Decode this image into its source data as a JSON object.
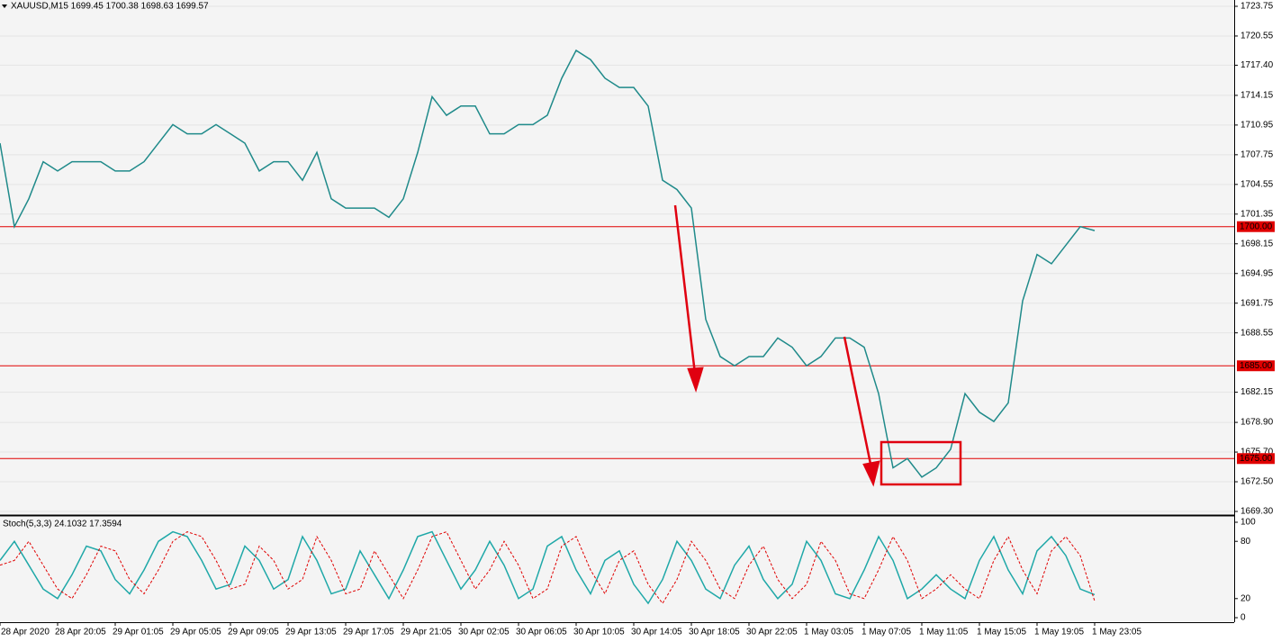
{
  "chart_data": [
    {
      "type": "line",
      "title": "XAUUSD,M15 1699.45 1700.38 1698.63 1699.57",
      "color": "#1f8a8a",
      "categories": [
        "28 Apr 2020",
        null,
        null,
        null,
        "28 Apr 20:05",
        null,
        null,
        null,
        "29 Apr 01:05",
        null,
        null,
        null,
        "29 Apr 05:05",
        null,
        null,
        null,
        "29 Apr 09:05",
        null,
        null,
        null,
        "29 Apr 13:05",
        null,
        null,
        null,
        "29 Apr 17:05",
        null,
        null,
        null,
        "29 Apr 21:05",
        null,
        null,
        null,
        "30 Apr 02:05",
        null,
        null,
        null,
        "30 Apr 06:05",
        null,
        null,
        null,
        "30 Apr 10:05",
        null,
        null,
        null,
        "30 Apr 14:05",
        null,
        null,
        null,
        "30 Apr 18:05",
        null,
        null,
        null,
        "30 Apr 22:05",
        null,
        null,
        null,
        "1 May 03:05",
        null,
        null,
        null,
        "1 May 07:05",
        null,
        null,
        null,
        "1 May 11:05",
        null,
        null,
        null,
        "1 May 15:05",
        null,
        null,
        null,
        "1 May 19:05",
        null,
        null,
        null,
        "1 May 23:05"
      ],
      "values": [
        1709,
        1700,
        1703,
        1707,
        1706,
        1707,
        1707,
        1707,
        1706,
        1706,
        1707,
        1709,
        1711,
        1710,
        1710,
        1711,
        1710,
        1709,
        1706,
        1707,
        1707,
        1705,
        1708,
        1703,
        1702,
        1702,
        1702,
        1701,
        1703,
        1708,
        1714,
        1712,
        1713,
        1713,
        1710,
        1710,
        1711,
        1711,
        1712,
        1716,
        1719,
        1718,
        1716,
        1715,
        1715,
        1713,
        1705,
        1704,
        1702,
        1690,
        1686,
        1685,
        1686,
        1686,
        1688,
        1687,
        1685,
        1686,
        1688,
        1688,
        1687,
        1682,
        1674,
        1675,
        1673,
        1674,
        1676,
        1682,
        1680,
        1679,
        1681,
        1692,
        1697,
        1696,
        1698,
        1700,
        1699.57
      ],
      "ylim": [
        1669.3,
        1723.75
      ],
      "yticks": [
        {
          "value": 1669.3,
          "label": "1669.30"
        },
        {
          "value": 1672.5,
          "label": "1672.50"
        },
        {
          "value": 1675.7,
          "label": "1675.70"
        },
        {
          "value": 1678.9,
          "label": "1678.90"
        },
        1682.15,
        1688.55,
        1691.75,
        1694.95,
        1698.15,
        1701.35,
        1704.55,
        1707.75,
        1710.95,
        1714.15,
        {
          "value": 1717.4,
          "label": "1717.40"
        },
        1720.55,
        1723.75
      ],
      "levels": [
        {
          "value": 1700,
          "label": "1700.00"
        },
        {
          "value": 1685,
          "label": "1685.00"
        },
        {
          "value": 1675,
          "label": "1675.00"
        }
      ],
      "level_color": "#e00000",
      "grid": true
    },
    {
      "type": "line",
      "title": "Stoch(5,3,3) 24.1032 17.3594",
      "series": [
        {
          "color": "#1fa8a8",
          "values": [
            60,
            80,
            55,
            30,
            20,
            45,
            75,
            70,
            40,
            25,
            50,
            80,
            90,
            85,
            60,
            30,
            35,
            75,
            60,
            30,
            40,
            85,
            60,
            25,
            30,
            70,
            45,
            20,
            50,
            85,
            90,
            60,
            30,
            50,
            80,
            55,
            20,
            30,
            75,
            85,
            50,
            25,
            60,
            70,
            35,
            15,
            40,
            80,
            60,
            30,
            20,
            55,
            75,
            40,
            20,
            35,
            80,
            60,
            25,
            20,
            50,
            85,
            60,
            20,
            30,
            45,
            30,
            20,
            60,
            85,
            50,
            25,
            70,
            85,
            65,
            30,
            24.1
          ]
        },
        {
          "color": "#e00000",
          "values": [
            55,
            60,
            80,
            55,
            30,
            20,
            45,
            75,
            70,
            40,
            25,
            50,
            80,
            90,
            85,
            60,
            30,
            35,
            75,
            60,
            30,
            40,
            85,
            60,
            25,
            30,
            70,
            45,
            20,
            50,
            85,
            90,
            60,
            30,
            50,
            80,
            55,
            20,
            30,
            75,
            85,
            50,
            25,
            60,
            70,
            35,
            15,
            40,
            80,
            60,
            30,
            20,
            55,
            75,
            40,
            20,
            35,
            80,
            60,
            25,
            20,
            50,
            85,
            60,
            20,
            30,
            45,
            30,
            20,
            60,
            85,
            50,
            25,
            70,
            85,
            65,
            17.4
          ]
        }
      ],
      "ylim": [
        0,
        100
      ],
      "yticks": [
        0,
        20,
        80,
        100
      ]
    }
  ]
}
